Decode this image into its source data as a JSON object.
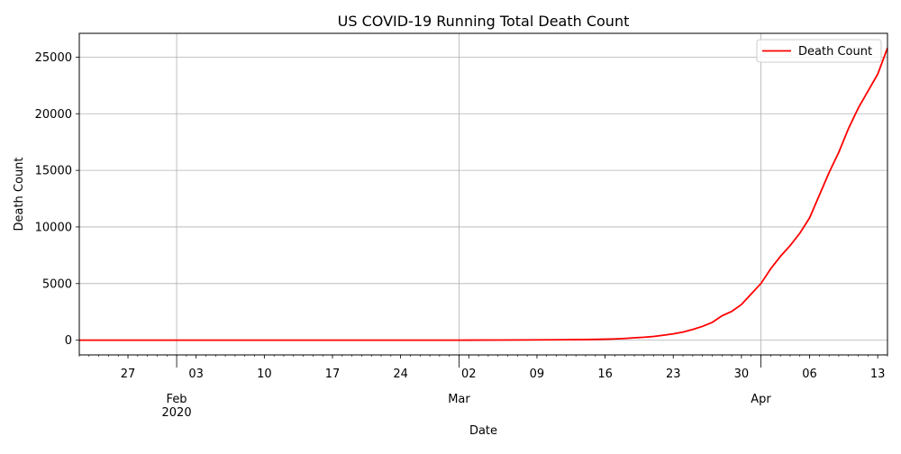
{
  "chart_data": {
    "type": "line",
    "title": "US COVID-19 Running Total Death Count",
    "xlabel": "Date",
    "ylabel": "Death Count",
    "x_range": [
      "2020-01-22",
      "2020-04-14"
    ],
    "ylim": [
      -1300,
      27100
    ],
    "grid": true,
    "legend_position": "top-right",
    "yticks": [
      0,
      5000,
      10000,
      15000,
      20000,
      25000
    ],
    "yticklabels": [
      "0",
      "5000",
      "10000",
      "15000",
      "20000",
      "25000"
    ],
    "xticks_minor": [
      {
        "date": "2020-01-27",
        "label": "27"
      },
      {
        "date": "2020-02-03",
        "label": "03"
      },
      {
        "date": "2020-02-10",
        "label": "10"
      },
      {
        "date": "2020-02-17",
        "label": "17"
      },
      {
        "date": "2020-02-24",
        "label": "24"
      },
      {
        "date": "2020-03-02",
        "label": "02"
      },
      {
        "date": "2020-03-09",
        "label": "09"
      },
      {
        "date": "2020-03-16",
        "label": "16"
      },
      {
        "date": "2020-03-23",
        "label": "23"
      },
      {
        "date": "2020-03-30",
        "label": "30"
      },
      {
        "date": "2020-04-06",
        "label": "06"
      },
      {
        "date": "2020-04-13",
        "label": "13"
      }
    ],
    "xticks_major": [
      {
        "date": "2020-02-01",
        "label": "Feb",
        "sublabel": "2020"
      },
      {
        "date": "2020-03-01",
        "label": "Mar",
        "sublabel": ""
      },
      {
        "date": "2020-04-01",
        "label": "Apr",
        "sublabel": ""
      }
    ],
    "series": [
      {
        "name": "Death Count",
        "color": "#ff0000",
        "points": [
          [
            "2020-01-22",
            0
          ],
          [
            "2020-02-29",
            1
          ],
          [
            "2020-03-02",
            6
          ],
          [
            "2020-03-05",
            12
          ],
          [
            "2020-03-08",
            21
          ],
          [
            "2020-03-10",
            31
          ],
          [
            "2020-03-12",
            45
          ],
          [
            "2020-03-14",
            57
          ],
          [
            "2020-03-16",
            86
          ],
          [
            "2020-03-17",
            110
          ],
          [
            "2020-03-18",
            150
          ],
          [
            "2020-03-19",
            210
          ],
          [
            "2020-03-20",
            260
          ],
          [
            "2020-03-21",
            330
          ],
          [
            "2020-03-22",
            440
          ],
          [
            "2020-03-23",
            560
          ],
          [
            "2020-03-24",
            720
          ],
          [
            "2020-03-25",
            950
          ],
          [
            "2020-03-26",
            1220
          ],
          [
            "2020-03-27",
            1570
          ],
          [
            "2020-03-28",
            2150
          ],
          [
            "2020-03-29",
            2540
          ],
          [
            "2020-03-30",
            3150
          ],
          [
            "2020-03-31",
            4080
          ],
          [
            "2020-04-01",
            5000
          ],
          [
            "2020-04-02",
            6300
          ],
          [
            "2020-04-03",
            7400
          ],
          [
            "2020-04-04",
            8350
          ],
          [
            "2020-04-05",
            9450
          ],
          [
            "2020-04-06",
            10800
          ],
          [
            "2020-04-07",
            12800
          ],
          [
            "2020-04-08",
            14800
          ],
          [
            "2020-04-09",
            16600
          ],
          [
            "2020-04-10",
            18700
          ],
          [
            "2020-04-11",
            20500
          ],
          [
            "2020-04-12",
            22000
          ],
          [
            "2020-04-13",
            23500
          ],
          [
            "2020-04-14",
            25800
          ]
        ]
      }
    ]
  }
}
